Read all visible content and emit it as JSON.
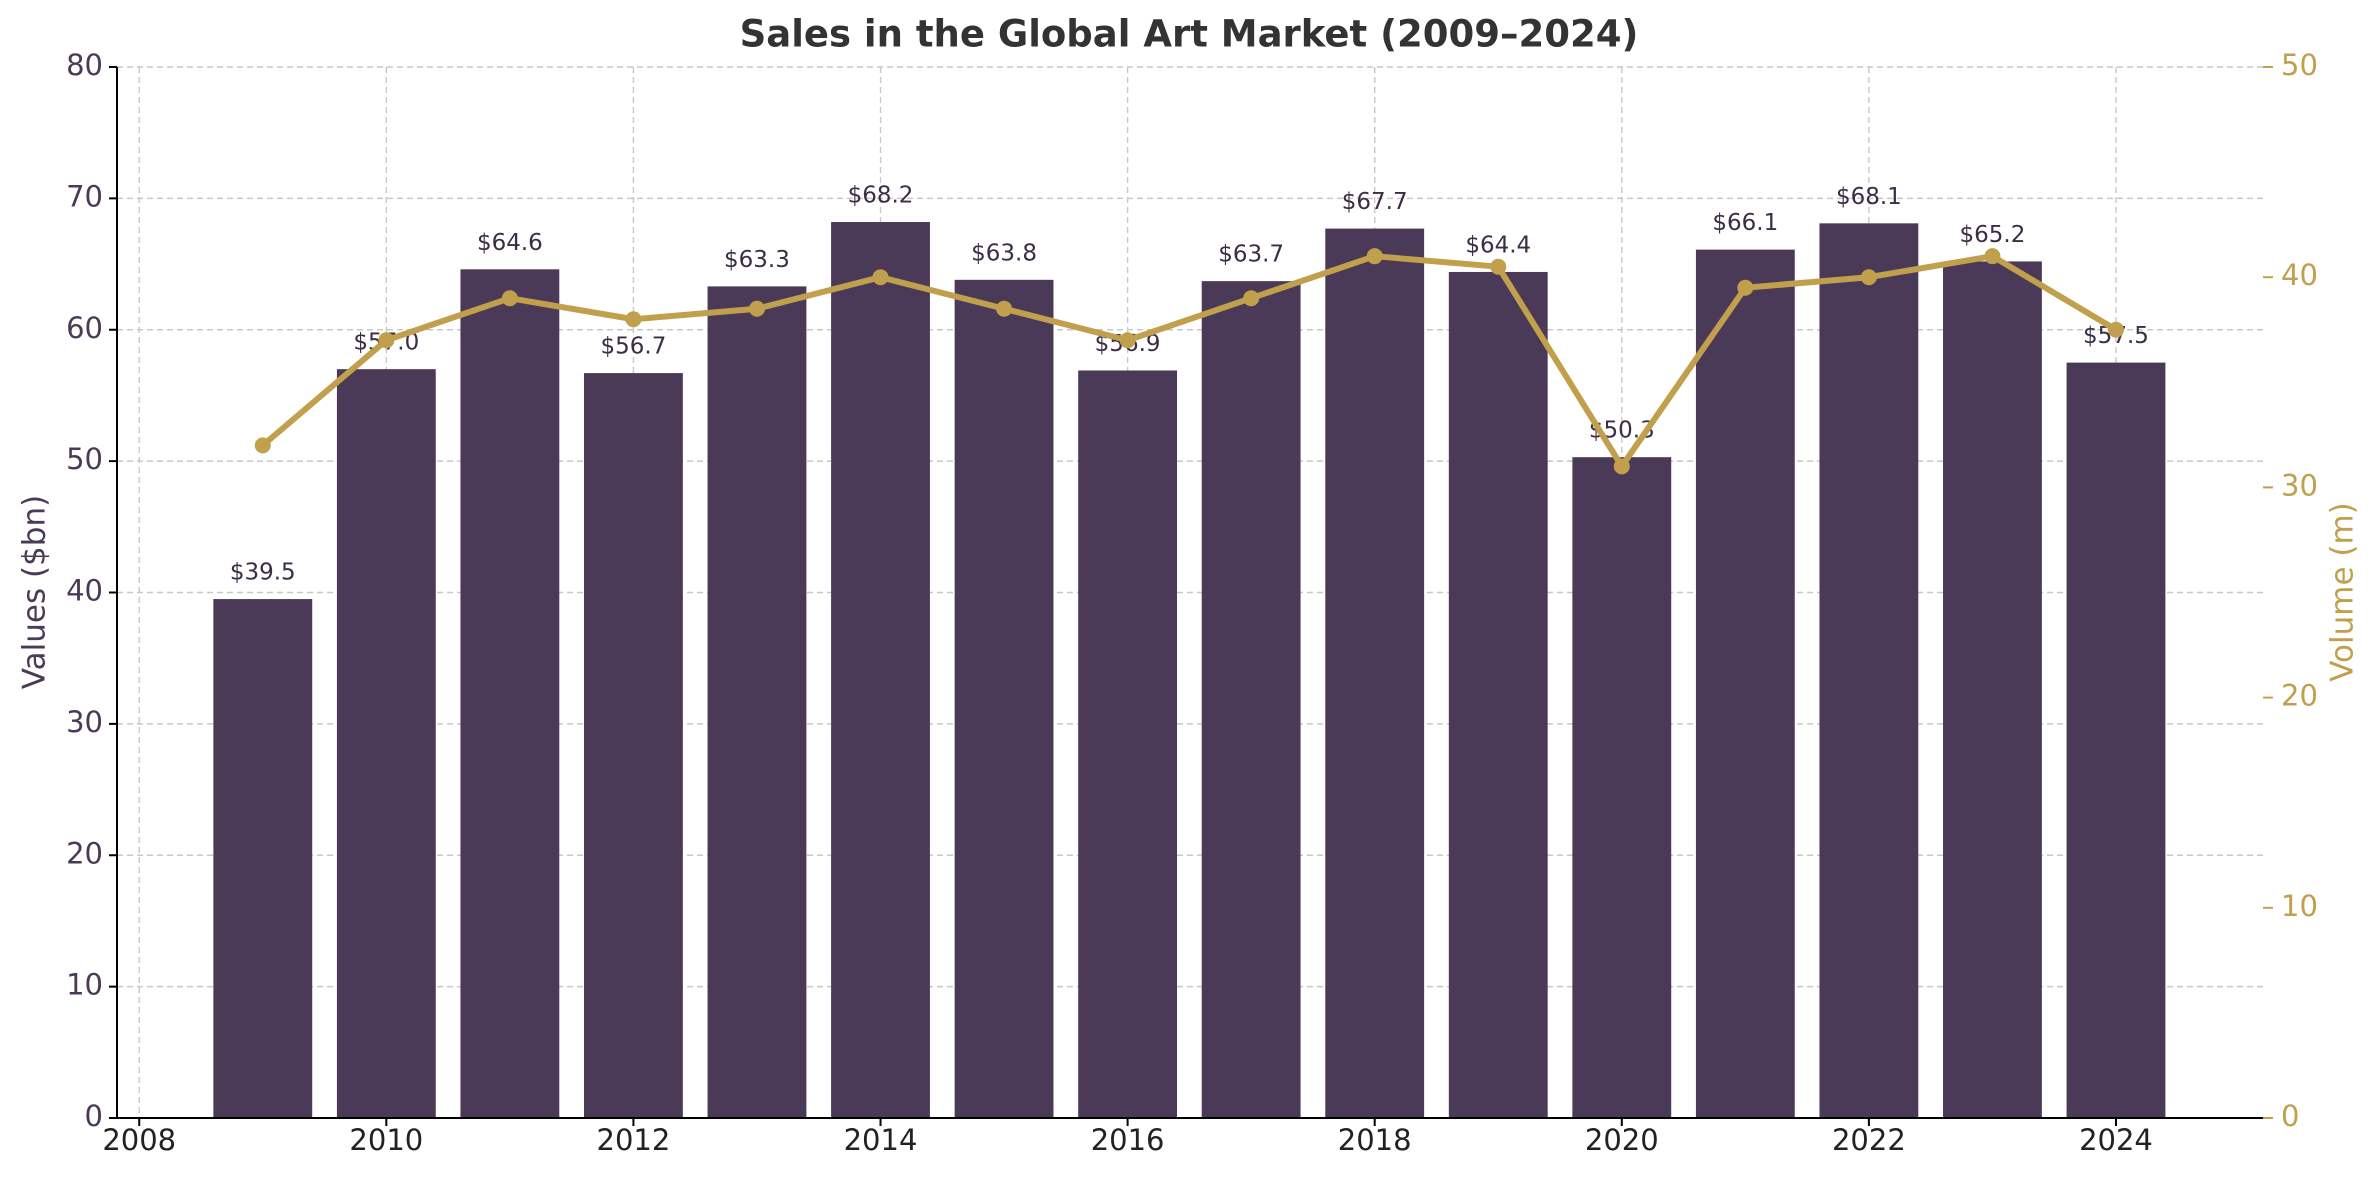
{
  "chart_data": {
    "type": "bar",
    "title": "Sales in the Global Art Market (2009–2024)",
    "x": [
      2009,
      2010,
      2011,
      2012,
      2013,
      2014,
      2015,
      2016,
      2017,
      2018,
      2019,
      2020,
      2021,
      2022,
      2023,
      2024
    ],
    "series": [
      {
        "type": "bar",
        "color": "#4b3a57",
        "values": [
          39.5,
          57.0,
          64.6,
          56.7,
          63.3,
          68.2,
          63.8,
          56.9,
          63.7,
          67.7,
          64.4,
          50.3,
          66.1,
          68.1,
          65.2,
          57.5
        ],
        "value_labels": [
          "$39.5",
          "$57.0",
          "$64.6",
          "$56.7",
          "$63.3",
          "$68.2",
          "$63.8",
          "$56.9",
          "$63.7",
          "$67.7",
          "$64.4",
          "$50.3",
          "$66.1",
          "$68.1",
          "$65.2",
          "$57.5"
        ]
      },
      {
        "type": "line",
        "axis": "y2",
        "color": "#c0a04c",
        "values": [
          32.0,
          37.0,
          39.0,
          38.0,
          38.5,
          40.0,
          38.5,
          37.0,
          39.0,
          41.0,
          40.5,
          31.0,
          39.5,
          40.0,
          41.0,
          37.5
        ]
      }
    ],
    "ylabel": "Values ($bn)",
    "y2label": "Volume (m)",
    "xlim": [
      2007.82,
      2025.19
    ],
    "xticks": [
      2008,
      2010,
      2012,
      2014,
      2016,
      2018,
      2020,
      2022,
      2024
    ],
    "ylim": [
      0,
      80
    ],
    "yticks": [
      0,
      10,
      20,
      30,
      40,
      50,
      60,
      70,
      80
    ],
    "y2lim": [
      0,
      50
    ],
    "y2ticks": [
      0,
      10,
      20,
      30,
      40,
      50
    ],
    "grid": true
  }
}
